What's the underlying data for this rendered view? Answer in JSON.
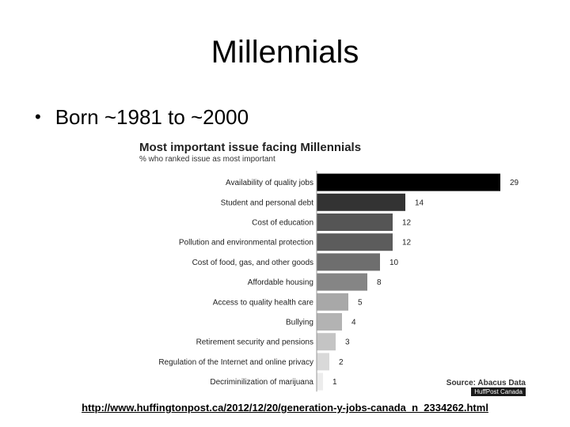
{
  "slide": {
    "title": "Millennials",
    "bullet": "Born ~1981 to ~2000",
    "url": "http://www.huffingtonpost.ca/2012/12/20/generation-y-jobs-canada_n_2334262.html"
  },
  "chart_data": {
    "type": "bar",
    "orientation": "horizontal",
    "title": "Most important issue facing Millennials",
    "subtitle": "% who ranked issue as most important",
    "categories": [
      "Availability of quality jobs",
      "Student and personal debt",
      "Cost of education",
      "Pollution and environmental protection",
      "Cost of food, gas, and other goods",
      "Affordable housing",
      "Access to quality health care",
      "Bullying",
      "Retirement security and pensions",
      "Regulation of the Internet and online privacy",
      "Decriminilization of marijuana"
    ],
    "values": [
      29,
      14,
      12,
      12,
      10,
      8,
      5,
      4,
      3,
      2,
      1
    ],
    "value_labels": [
      "29",
      "14",
      "12",
      "12",
      "10",
      "8",
      "5",
      "4",
      "3",
      "2",
      "1"
    ],
    "bar_colors": [
      "#000000",
      "#333333",
      "#555555",
      "#5c5c5c",
      "#6e6e6e",
      "#858585",
      "#a8a8a8",
      "#b3b3b3",
      "#c4c4c4",
      "#d9d9d9",
      "#ececec"
    ],
    "xlim": [
      0,
      30
    ],
    "grid": false,
    "source": "Source: Abacus Data",
    "badge": "HuffPost Canada"
  }
}
